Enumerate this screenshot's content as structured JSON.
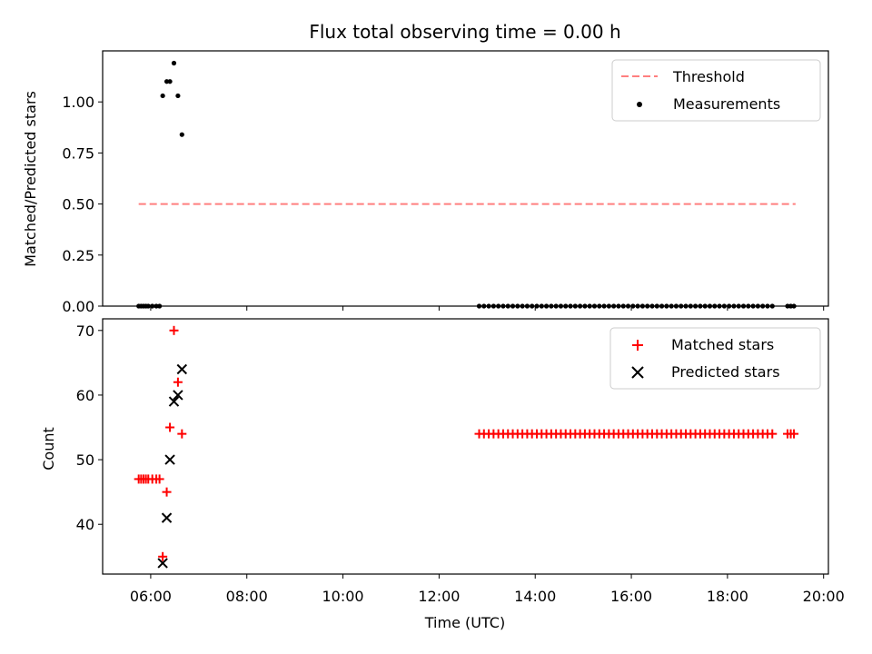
{
  "chart_data": [
    {
      "type": "scatter",
      "title": "Flux total observing time = 0.00 h",
      "xlabel": "",
      "ylabel": "Matched/Predicted stars",
      "xlim": [
        "05:00",
        "20:06"
      ],
      "ylim": [
        0,
        1.25
      ],
      "y_ticks": [
        "0.00",
        "0.25",
        "0.50",
        "0.75",
        "1.00"
      ],
      "legend_position": "top-right",
      "threshold": {
        "name": "Threshold",
        "value": 0.5,
        "x_range": [
          "05:45",
          "19:25"
        ],
        "color": "#ff7f7f",
        "style": "dashed"
      },
      "series": [
        {
          "name": "Measurements",
          "color": "#000000",
          "marker": "dot",
          "points": [
            {
              "x": "05:45",
              "y": 0
            },
            {
              "x": "05:48",
              "y": 0
            },
            {
              "x": "05:51",
              "y": 0
            },
            {
              "x": "05:54",
              "y": 0
            },
            {
              "x": "05:57",
              "y": 0
            },
            {
              "x": "06:02",
              "y": 0
            },
            {
              "x": "06:07",
              "y": 0
            },
            {
              "x": "06:11",
              "y": 0
            },
            {
              "x": "06:15",
              "y": 1.03
            },
            {
              "x": "06:20",
              "y": 1.1
            },
            {
              "x": "06:24",
              "y": 1.1
            },
            {
              "x": "06:29",
              "y": 1.19
            },
            {
              "x": "06:34",
              "y": 1.03
            },
            {
              "x": "06:39",
              "y": 0.84
            },
            {
              "x": "12:50",
              "y": 0
            },
            {
              "x": "12:56",
              "y": 0
            },
            {
              "x": "13:02",
              "y": 0
            },
            {
              "x": "13:08",
              "y": 0
            },
            {
              "x": "13:14",
              "y": 0
            },
            {
              "x": "13:20",
              "y": 0
            },
            {
              "x": "13:26",
              "y": 0
            },
            {
              "x": "13:32",
              "y": 0
            },
            {
              "x": "13:38",
              "y": 0
            },
            {
              "x": "13:44",
              "y": 0
            },
            {
              "x": "13:50",
              "y": 0
            },
            {
              "x": "13:56",
              "y": 0
            },
            {
              "x": "14:02",
              "y": 0
            },
            {
              "x": "14:08",
              "y": 0
            },
            {
              "x": "14:14",
              "y": 0
            },
            {
              "x": "14:20",
              "y": 0
            },
            {
              "x": "14:26",
              "y": 0
            },
            {
              "x": "14:32",
              "y": 0
            },
            {
              "x": "14:38",
              "y": 0
            },
            {
              "x": "14:44",
              "y": 0
            },
            {
              "x": "14:50",
              "y": 0
            },
            {
              "x": "14:56",
              "y": 0
            },
            {
              "x": "15:02",
              "y": 0
            },
            {
              "x": "15:08",
              "y": 0
            },
            {
              "x": "15:14",
              "y": 0
            },
            {
              "x": "15:20",
              "y": 0
            },
            {
              "x": "15:26",
              "y": 0
            },
            {
              "x": "15:32",
              "y": 0
            },
            {
              "x": "15:38",
              "y": 0
            },
            {
              "x": "15:44",
              "y": 0
            },
            {
              "x": "15:50",
              "y": 0
            },
            {
              "x": "15:56",
              "y": 0
            },
            {
              "x": "16:02",
              "y": 0
            },
            {
              "x": "16:08",
              "y": 0
            },
            {
              "x": "16:14",
              "y": 0
            },
            {
              "x": "16:20",
              "y": 0
            },
            {
              "x": "16:26",
              "y": 0
            },
            {
              "x": "16:32",
              "y": 0
            },
            {
              "x": "16:38",
              "y": 0
            },
            {
              "x": "16:44",
              "y": 0
            },
            {
              "x": "16:50",
              "y": 0
            },
            {
              "x": "16:56",
              "y": 0
            },
            {
              "x": "17:02",
              "y": 0
            },
            {
              "x": "17:08",
              "y": 0
            },
            {
              "x": "17:14",
              "y": 0
            },
            {
              "x": "17:20",
              "y": 0
            },
            {
              "x": "17:26",
              "y": 0
            },
            {
              "x": "17:32",
              "y": 0
            },
            {
              "x": "17:38",
              "y": 0
            },
            {
              "x": "17:44",
              "y": 0
            },
            {
              "x": "17:50",
              "y": 0
            },
            {
              "x": "17:56",
              "y": 0
            },
            {
              "x": "18:02",
              "y": 0
            },
            {
              "x": "18:08",
              "y": 0
            },
            {
              "x": "18:14",
              "y": 0
            },
            {
              "x": "18:20",
              "y": 0
            },
            {
              "x": "18:26",
              "y": 0
            },
            {
              "x": "18:32",
              "y": 0
            },
            {
              "x": "18:38",
              "y": 0
            },
            {
              "x": "18:44",
              "y": 0
            },
            {
              "x": "18:50",
              "y": 0
            },
            {
              "x": "18:56",
              "y": 0
            },
            {
              "x": "19:15",
              "y": 0
            },
            {
              "x": "19:19",
              "y": 0
            },
            {
              "x": "19:23",
              "y": 0
            }
          ]
        }
      ]
    },
    {
      "type": "scatter",
      "title": "",
      "xlabel": "Time (UTC)",
      "ylabel": "Count",
      "xlim": [
        "05:00",
        "20:06"
      ],
      "ylim": [
        32.3,
        71.8
      ],
      "y_ticks": [
        "40",
        "50",
        "60",
        "70"
      ],
      "x_ticks": [
        "06:00",
        "08:00",
        "10:00",
        "12:00",
        "14:00",
        "16:00",
        "18:00",
        "20:00"
      ],
      "legend_position": "top-right",
      "series": [
        {
          "name": "Matched stars",
          "color": "#ff0000",
          "marker": "plus",
          "points": [
            {
              "x": "05:45",
              "y": 47
            },
            {
              "x": "05:48",
              "y": 47
            },
            {
              "x": "05:51",
              "y": 47
            },
            {
              "x": "05:54",
              "y": 47
            },
            {
              "x": "05:57",
              "y": 47
            },
            {
              "x": "06:02",
              "y": 47
            },
            {
              "x": "06:07",
              "y": 47
            },
            {
              "x": "06:11",
              "y": 47
            },
            {
              "x": "06:15",
              "y": 35
            },
            {
              "x": "06:20",
              "y": 45
            },
            {
              "x": "06:24",
              "y": 55
            },
            {
              "x": "06:29",
              "y": 70
            },
            {
              "x": "06:34",
              "y": 62
            },
            {
              "x": "06:39",
              "y": 54
            },
            {
              "x": "12:50",
              "y": 54
            },
            {
              "x": "12:56",
              "y": 54
            },
            {
              "x": "13:02",
              "y": 54
            },
            {
              "x": "13:08",
              "y": 54
            },
            {
              "x": "13:14",
              "y": 54
            },
            {
              "x": "13:20",
              "y": 54
            },
            {
              "x": "13:26",
              "y": 54
            },
            {
              "x": "13:32",
              "y": 54
            },
            {
              "x": "13:38",
              "y": 54
            },
            {
              "x": "13:44",
              "y": 54
            },
            {
              "x": "13:50",
              "y": 54
            },
            {
              "x": "13:56",
              "y": 54
            },
            {
              "x": "14:02",
              "y": 54
            },
            {
              "x": "14:08",
              "y": 54
            },
            {
              "x": "14:14",
              "y": 54
            },
            {
              "x": "14:20",
              "y": 54
            },
            {
              "x": "14:26",
              "y": 54
            },
            {
              "x": "14:32",
              "y": 54
            },
            {
              "x": "14:38",
              "y": 54
            },
            {
              "x": "14:44",
              "y": 54
            },
            {
              "x": "14:50",
              "y": 54
            },
            {
              "x": "14:56",
              "y": 54
            },
            {
              "x": "15:02",
              "y": 54
            },
            {
              "x": "15:08",
              "y": 54
            },
            {
              "x": "15:14",
              "y": 54
            },
            {
              "x": "15:20",
              "y": 54
            },
            {
              "x": "15:26",
              "y": 54
            },
            {
              "x": "15:32",
              "y": 54
            },
            {
              "x": "15:38",
              "y": 54
            },
            {
              "x": "15:44",
              "y": 54
            },
            {
              "x": "15:50",
              "y": 54
            },
            {
              "x": "15:56",
              "y": 54
            },
            {
              "x": "16:02",
              "y": 54
            },
            {
              "x": "16:08",
              "y": 54
            },
            {
              "x": "16:14",
              "y": 54
            },
            {
              "x": "16:20",
              "y": 54
            },
            {
              "x": "16:26",
              "y": 54
            },
            {
              "x": "16:32",
              "y": 54
            },
            {
              "x": "16:38",
              "y": 54
            },
            {
              "x": "16:44",
              "y": 54
            },
            {
              "x": "16:50",
              "y": 54
            },
            {
              "x": "16:56",
              "y": 54
            },
            {
              "x": "17:02",
              "y": 54
            },
            {
              "x": "17:08",
              "y": 54
            },
            {
              "x": "17:14",
              "y": 54
            },
            {
              "x": "17:20",
              "y": 54
            },
            {
              "x": "17:26",
              "y": 54
            },
            {
              "x": "17:32",
              "y": 54
            },
            {
              "x": "17:38",
              "y": 54
            },
            {
              "x": "17:44",
              "y": 54
            },
            {
              "x": "17:50",
              "y": 54
            },
            {
              "x": "17:56",
              "y": 54
            },
            {
              "x": "18:02",
              "y": 54
            },
            {
              "x": "18:08",
              "y": 54
            },
            {
              "x": "18:14",
              "y": 54
            },
            {
              "x": "18:20",
              "y": 54
            },
            {
              "x": "18:26",
              "y": 54
            },
            {
              "x": "18:32",
              "y": 54
            },
            {
              "x": "18:38",
              "y": 54
            },
            {
              "x": "18:44",
              "y": 54
            },
            {
              "x": "18:50",
              "y": 54
            },
            {
              "x": "18:56",
              "y": 54
            },
            {
              "x": "19:15",
              "y": 54
            },
            {
              "x": "19:19",
              "y": 54
            },
            {
              "x": "19:23",
              "y": 54
            }
          ]
        },
        {
          "name": "Predicted stars",
          "color": "#000000",
          "marker": "x",
          "points": [
            {
              "x": "06:15",
              "y": 34
            },
            {
              "x": "06:20",
              "y": 41
            },
            {
              "x": "06:24",
              "y": 50
            },
            {
              "x": "06:29",
              "y": 59
            },
            {
              "x": "06:34",
              "y": 60
            },
            {
              "x": "06:39",
              "y": 64
            }
          ]
        }
      ]
    }
  ]
}
